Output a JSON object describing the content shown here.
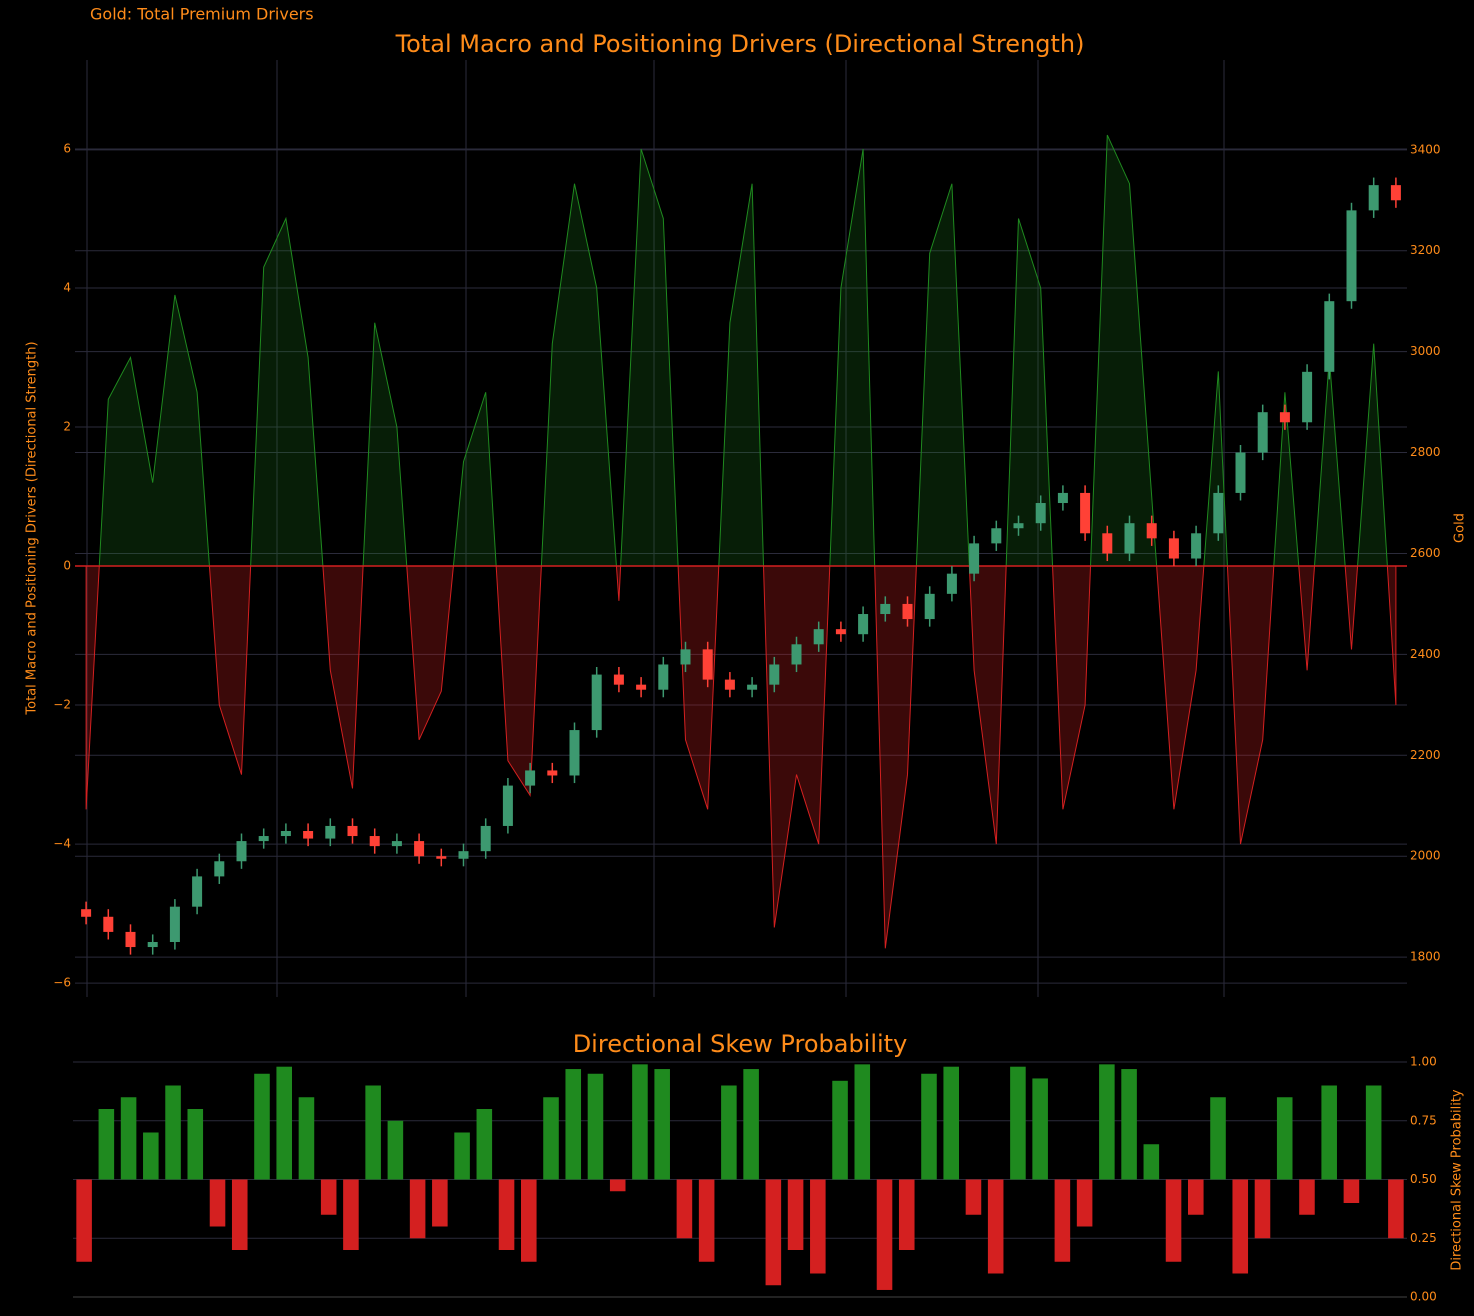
{
  "chart_data": [
    {
      "type": "area",
      "annotation": "Gold: Total Premium Drivers",
      "title": "Total Macro and Positioning Drivers (Directional Strength)",
      "ylabel": "Total Macro and Positioning Drivers (Directional Strength)",
      "y2label": "Gold",
      "ylim": [
        -6.2,
        7.28
      ],
      "yticks": [
        {
          "value": -6,
          "label": "−6"
        },
        {
          "value": -4,
          "label": "−4"
        },
        {
          "value": -2,
          "label": "−2"
        },
        0,
        2,
        4,
        6
      ],
      "y2lim": [
        1721,
        3578
      ],
      "y2ticks": [
        1800,
        2000,
        2200,
        2400,
        2600,
        2800,
        3000,
        3200,
        3400
      ],
      "grid": true,
      "series": [
        {
          "positive_color": "#1f8a1f",
          "negative_color": "#d42020",
          "values": [
            -3.5,
            2.4,
            3.0,
            1.2,
            3.9,
            2.5,
            -2.0,
            -3.0,
            4.3,
            5.0,
            3.0,
            -1.5,
            -3.2,
            3.5,
            2.0,
            -2.5,
            -1.8,
            1.5,
            2.5,
            -2.8,
            -3.3,
            3.2,
            5.5,
            4.0,
            -0.5,
            6.0,
            5.0,
            -2.5,
            -3.5,
            3.5,
            5.5,
            -5.2,
            -3.0,
            -4.0,
            4.0,
            6.0,
            -5.5,
            -3.0,
            4.5,
            5.5,
            -1.5,
            -4.0,
            5.0,
            4.0,
            -3.5,
            -2.0,
            6.2,
            5.5,
            1.0,
            -3.5,
            -1.5,
            2.8,
            -4.0,
            -2.5,
            2.5,
            -1.5,
            3.0,
            -1.2,
            3.2,
            -2.0
          ]
        },
        {
          "type": "candlestick",
          "axis": "y2",
          "increasing_color": "#3d9970",
          "decreasing_color": "#ff4136",
          "open": [
            1895,
            1880,
            1850,
            1820,
            1830,
            1900,
            1960,
            1990,
            2030,
            2040,
            2050,
            2035,
            2060,
            2040,
            2020,
            2030,
            2000,
            1995,
            2010,
            2060,
            2140,
            2170,
            2160,
            2250,
            2360,
            2340,
            2330,
            2380,
            2410,
            2350,
            2330,
            2340,
            2380,
            2420,
            2450,
            2440,
            2480,
            2500,
            2470,
            2520,
            2560,
            2620,
            2650,
            2660,
            2700,
            2720,
            2640,
            2600,
            2660,
            2630,
            2590,
            2640,
            2720,
            2800,
            2880,
            2860,
            2960,
            3100,
            3280,
            3330
          ],
          "high": [
            1910,
            1895,
            1865,
            1845,
            1915,
            1975,
            2005,
            2045,
            2055,
            2065,
            2065,
            2075,
            2075,
            2055,
            2045,
            2045,
            2015,
            2025,
            2075,
            2155,
            2185,
            2185,
            2265,
            2375,
            2375,
            2355,
            2395,
            2425,
            2425,
            2365,
            2355,
            2395,
            2435,
            2465,
            2465,
            2495,
            2515,
            2515,
            2535,
            2575,
            2635,
            2665,
            2675,
            2715,
            2735,
            2735,
            2655,
            2675,
            2675,
            2645,
            2655,
            2735,
            2815,
            2895,
            2895,
            2975,
            3115,
            3295,
            3345,
            3345
          ],
          "low": [
            1865,
            1835,
            1805,
            1805,
            1815,
            1885,
            1945,
            1975,
            2015,
            2025,
            2020,
            2020,
            2025,
            2005,
            2005,
            1985,
            1980,
            1980,
            1995,
            2045,
            2125,
            2145,
            2145,
            2235,
            2325,
            2315,
            2315,
            2365,
            2335,
            2315,
            2315,
            2325,
            2365,
            2405,
            2425,
            2425,
            2465,
            2455,
            2455,
            2505,
            2545,
            2605,
            2635,
            2645,
            2685,
            2625,
            2585,
            2585,
            2615,
            2575,
            2575,
            2625,
            2705,
            2785,
            2845,
            2845,
            2945,
            3085,
            3265,
            3285
          ],
          "close": [
            1880,
            1850,
            1820,
            1830,
            1900,
            1960,
            1990,
            2030,
            2040,
            2050,
            2035,
            2060,
            2040,
            2020,
            2030,
            2000,
            1995,
            2010,
            2060,
            2140,
            2170,
            2160,
            2250,
            2360,
            2340,
            2330,
            2380,
            2410,
            2350,
            2330,
            2340,
            2380,
            2420,
            2450,
            2440,
            2480,
            2500,
            2470,
            2520,
            2560,
            2620,
            2650,
            2660,
            2700,
            2720,
            2640,
            2600,
            2660,
            2630,
            2590,
            2640,
            2720,
            2800,
            2880,
            2860,
            2960,
            3100,
            3280,
            3330,
            3300
          ]
        }
      ]
    },
    {
      "type": "bar",
      "title": "Directional Skew Probability",
      "ylabel": "Directional Skew Probability",
      "ylim": [
        0,
        1
      ],
      "yticks": [
        {
          "value": 0,
          "label": "0.00"
        },
        {
          "value": 0.25,
          "label": "0.25"
        },
        {
          "value": 0.5,
          "label": "0.50"
        },
        {
          "value": 0.75,
          "label": "0.75"
        },
        {
          "value": 1,
          "label": "1.00"
        }
      ],
      "base": 0.5,
      "grid": true,
      "positive_color": "#1f8a1f",
      "negative_color": "#d42020",
      "values": [
        0.15,
        0.8,
        0.85,
        0.7,
        0.9,
        0.8,
        0.3,
        0.2,
        0.95,
        0.98,
        0.85,
        0.35,
        0.2,
        0.9,
        0.75,
        0.25,
        0.3,
        0.7,
        0.8,
        0.2,
        0.15,
        0.85,
        0.97,
        0.95,
        0.45,
        0.99,
        0.97,
        0.25,
        0.15,
        0.9,
        0.97,
        0.05,
        0.2,
        0.1,
        0.92,
        0.99,
        0.03,
        0.2,
        0.95,
        0.98,
        0.35,
        0.1,
        0.98,
        0.93,
        0.15,
        0.3,
        0.99,
        0.97,
        0.65,
        0.15,
        0.35,
        0.85,
        0.1,
        0.25,
        0.85,
        0.35,
        0.9,
        0.4,
        0.9,
        0.25
      ]
    }
  ]
}
